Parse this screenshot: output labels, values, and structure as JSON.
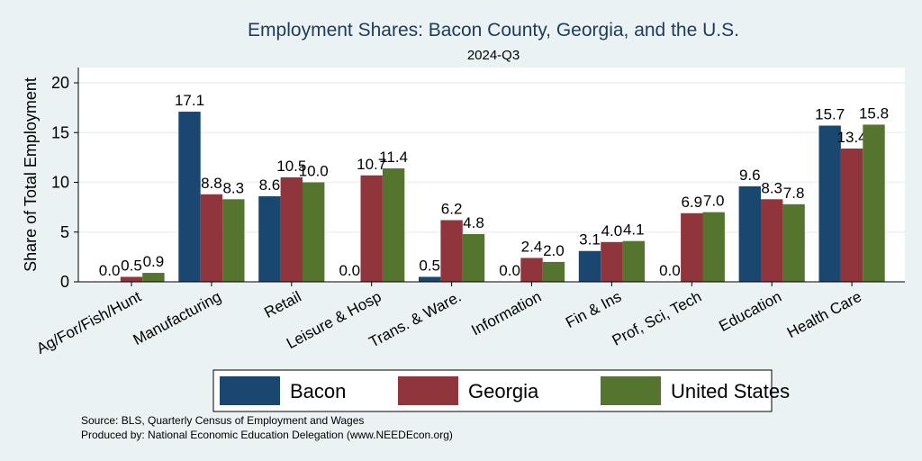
{
  "chart_data": {
    "type": "bar",
    "title": "Employment Shares: Bacon County, Georgia, and the U.S.",
    "subtitle": "2024-Q3",
    "xlabel": "",
    "ylabel": "Share of Total Employment",
    "ylim": [
      0,
      21.5
    ],
    "yticks": [
      0,
      5,
      10,
      15,
      20
    ],
    "grid": true,
    "legend_position": "bottom",
    "categories": [
      "Ag/For/Fish/Hunt",
      "Manufacturing",
      "Retail",
      "Leisure & Hosp",
      "Trans. & Ware.",
      "Information",
      "Fin & Ins",
      "Prof, Sci, Tech",
      "Education",
      "Health Care"
    ],
    "series": [
      {
        "name": "Bacon",
        "color": "#1a476f",
        "values": [
          0.0,
          17.1,
          8.6,
          0.0,
          0.5,
          0.0,
          3.1,
          0.0,
          9.6,
          15.7
        ]
      },
      {
        "name": "Georgia",
        "color": "#90353b",
        "values": [
          0.5,
          8.8,
          10.5,
          10.7,
          6.2,
          2.4,
          4.0,
          6.9,
          8.3,
          13.4
        ]
      },
      {
        "name": "United States",
        "color": "#55752f",
        "values": [
          0.9,
          8.3,
          10.0,
          11.4,
          4.8,
          2.0,
          4.1,
          7.0,
          7.8,
          15.8
        ]
      }
    ],
    "notes": [
      "Source: BLS, Quarterly Census of Employment and Wages",
      "Produced by: National Economic Education Delegation (www.NEEDEcon.org)"
    ]
  }
}
